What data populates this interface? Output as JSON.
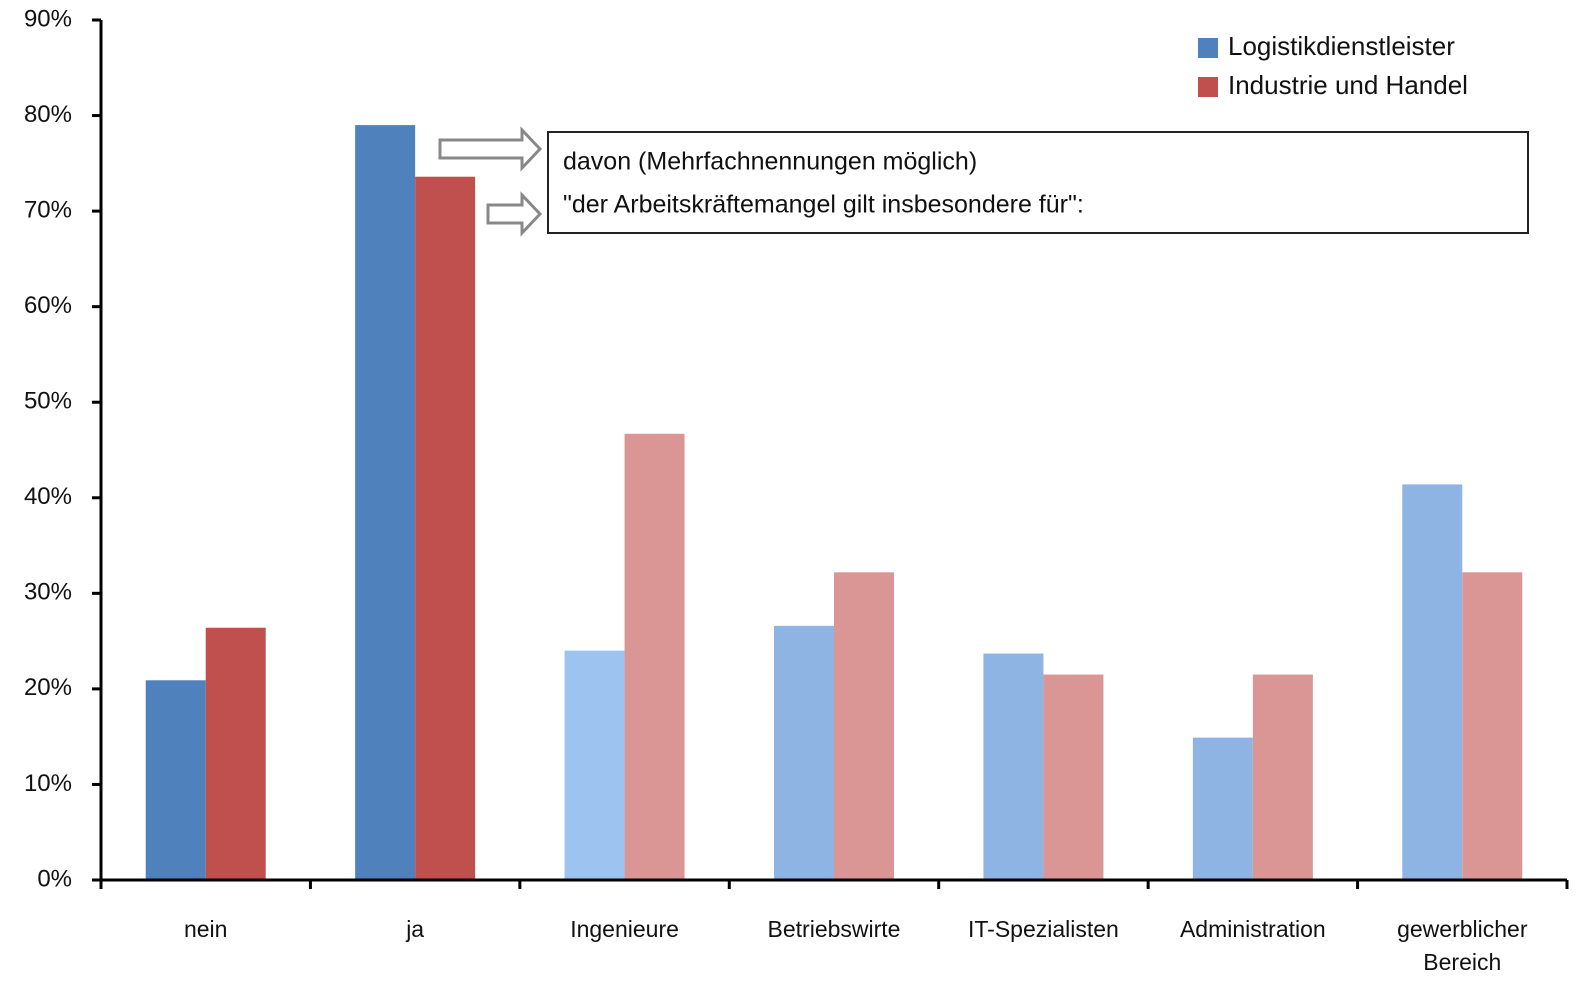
{
  "chart_data": {
    "type": "bar",
    "categories": [
      "nein",
      "ja",
      "Ingenieure",
      "Betriebswirte",
      "IT-Spezialisten",
      "Administration",
      "gewerblicher Bereich"
    ],
    "series": [
      {
        "name": "Logistikdienstleister",
        "color": "#4f81bd",
        "colors": [
          "#4f81bd",
          "#4f81bd",
          "#9dc3f0",
          "#8eb4e3",
          "#8eb4e3",
          "#8eb4e3",
          "#8eb4e3"
        ],
        "values": [
          20.9,
          79.0,
          24.0,
          26.6,
          23.7,
          14.9,
          41.4
        ]
      },
      {
        "name": "Industrie und Handel",
        "color": "#c0504d",
        "colors": [
          "#c0504d",
          "#c0504d",
          "#d99694",
          "#d99694",
          "#d99694",
          "#d99694",
          "#d99694"
        ],
        "values": [
          26.4,
          73.6,
          46.7,
          32.2,
          21.5,
          21.5,
          32.2
        ]
      }
    ],
    "ylim": [
      0,
      90
    ],
    "yticks": [
      {
        "value": 0,
        "label": "0%"
      },
      {
        "value": 10,
        "label": "10%"
      },
      {
        "value": 20,
        "label": "20%"
      },
      {
        "value": 30,
        "label": "30%"
      },
      {
        "value": 40,
        "label": "40%"
      },
      {
        "value": 50,
        "label": "50%"
      },
      {
        "value": 60,
        "label": "60%"
      },
      {
        "value": 70,
        "label": "70%"
      },
      {
        "value": 80,
        "label": "80%"
      },
      {
        "value": 90,
        "label": "90%"
      }
    ],
    "legend": "top-right",
    "annotation": [
      "davon (Mehrfachnennungen  möglich)",
      "\"der Arbeitskräftemangel  gilt insbesondere  für\":"
    ]
  }
}
